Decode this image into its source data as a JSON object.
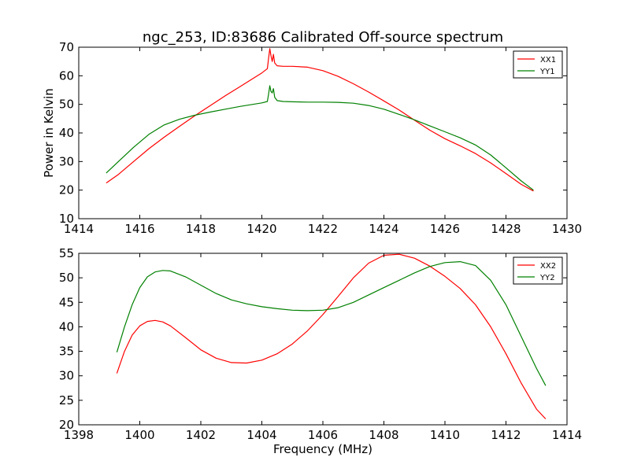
{
  "figure": {
    "title": "ngc_253, ID:83686 Calibrated Off-source spectrum"
  },
  "chart_data": [
    {
      "type": "line",
      "title": "ngc_253, ID:83686 Calibrated Off-source spectrum",
      "xlabel": "",
      "ylabel": "Power in Kelvin",
      "xlim": [
        1414,
        1430
      ],
      "ylim": [
        10,
        70
      ],
      "xticks": [
        1414,
        1416,
        1418,
        1420,
        1422,
        1424,
        1426,
        1428,
        1430
      ],
      "yticks": [
        10,
        20,
        30,
        40,
        50,
        60,
        70
      ],
      "grid": false,
      "legend_position": "top-right",
      "series": [
        {
          "name": "XX1",
          "color": "#ff0000",
          "x": [
            1414.9,
            1415.3,
            1415.8,
            1416.3,
            1416.8,
            1417.3,
            1417.8,
            1418.3,
            1418.8,
            1419.3,
            1419.7,
            1420.0,
            1420.18,
            1420.22,
            1420.26,
            1420.3,
            1420.34,
            1420.38,
            1420.42,
            1420.5,
            1420.7,
            1421.0,
            1421.5,
            1422.0,
            1422.5,
            1423.0,
            1423.5,
            1424.0,
            1424.5,
            1425.0,
            1425.5,
            1426.0,
            1426.5,
            1427.0,
            1427.5,
            1428.0,
            1428.5,
            1428.9
          ],
          "values": [
            22.5,
            25.5,
            30.0,
            34.5,
            38.5,
            42.3,
            46.0,
            49.5,
            53.0,
            56.3,
            59.0,
            61.0,
            62.5,
            66.0,
            69.5,
            67.0,
            65.0,
            67.5,
            64.5,
            63.5,
            63.3,
            63.3,
            63.0,
            61.8,
            59.8,
            57.2,
            54.3,
            51.2,
            48.0,
            44.5,
            41.0,
            38.0,
            35.5,
            32.8,
            29.5,
            25.8,
            22.0,
            19.7
          ]
        },
        {
          "name": "YY1",
          "color": "#008000",
          "x": [
            1414.9,
            1415.3,
            1415.8,
            1416.3,
            1416.8,
            1417.3,
            1417.8,
            1418.3,
            1418.8,
            1419.3,
            1419.7,
            1420.0,
            1420.18,
            1420.22,
            1420.26,
            1420.3,
            1420.34,
            1420.38,
            1420.42,
            1420.5,
            1420.7,
            1421.0,
            1421.5,
            1422.0,
            1422.5,
            1423.0,
            1423.5,
            1424.0,
            1424.5,
            1425.0,
            1425.5,
            1426.0,
            1426.5,
            1427.0,
            1427.5,
            1428.0,
            1428.5,
            1428.9
          ],
          "values": [
            26.0,
            30.0,
            35.0,
            39.5,
            42.8,
            44.8,
            46.2,
            47.3,
            48.3,
            49.3,
            50.0,
            50.5,
            51.0,
            53.5,
            56.5,
            54.5,
            54.0,
            55.5,
            52.5,
            51.3,
            51.0,
            50.9,
            50.8,
            50.8,
            50.7,
            50.4,
            49.6,
            48.3,
            46.5,
            44.6,
            42.5,
            40.4,
            38.3,
            35.8,
            32.3,
            27.8,
            23.2,
            20.0
          ]
        }
      ]
    },
    {
      "type": "line",
      "title": "",
      "xlabel": "Frequency (MHz)",
      "ylabel": "",
      "xlim": [
        1398,
        1414
      ],
      "ylim": [
        20,
        55
      ],
      "xticks": [
        1398,
        1400,
        1402,
        1404,
        1406,
        1408,
        1410,
        1412,
        1414
      ],
      "yticks": [
        20,
        25,
        30,
        35,
        40,
        45,
        50,
        55
      ],
      "grid": false,
      "legend_position": "top-right",
      "series": [
        {
          "name": "XX2",
          "color": "#ff0000",
          "x": [
            1399.25,
            1399.5,
            1399.75,
            1400.0,
            1400.25,
            1400.5,
            1400.75,
            1401.0,
            1401.5,
            1402.0,
            1402.5,
            1403.0,
            1403.5,
            1404.0,
            1404.5,
            1405.0,
            1405.5,
            1406.0,
            1406.5,
            1407.0,
            1407.5,
            1408.0,
            1408.5,
            1409.0,
            1409.5,
            1410.0,
            1410.5,
            1411.0,
            1411.5,
            1412.0,
            1412.5,
            1413.0,
            1413.3
          ],
          "values": [
            30.5,
            35.0,
            38.3,
            40.2,
            41.1,
            41.3,
            41.0,
            40.2,
            37.8,
            35.3,
            33.6,
            32.7,
            32.6,
            33.2,
            34.5,
            36.5,
            39.2,
            42.5,
            46.2,
            50.0,
            53.0,
            54.6,
            54.8,
            54.0,
            52.4,
            50.3,
            47.8,
            44.5,
            40.0,
            34.5,
            28.5,
            23.2,
            21.2
          ]
        },
        {
          "name": "YY2",
          "color": "#008000",
          "x": [
            1399.25,
            1399.5,
            1399.75,
            1400.0,
            1400.25,
            1400.5,
            1400.75,
            1401.0,
            1401.5,
            1402.0,
            1402.5,
            1403.0,
            1403.5,
            1404.0,
            1404.5,
            1405.0,
            1405.5,
            1406.0,
            1406.5,
            1407.0,
            1407.5,
            1408.0,
            1408.5,
            1409.0,
            1409.5,
            1410.0,
            1410.5,
            1411.0,
            1411.5,
            1412.0,
            1412.5,
            1413.0,
            1413.3
          ],
          "values": [
            34.8,
            40.0,
            44.5,
            48.0,
            50.2,
            51.2,
            51.5,
            51.4,
            50.2,
            48.5,
            46.8,
            45.5,
            44.7,
            44.1,
            43.7,
            43.4,
            43.3,
            43.4,
            43.9,
            45.0,
            46.5,
            48.0,
            49.5,
            51.0,
            52.3,
            53.1,
            53.3,
            52.5,
            49.5,
            44.5,
            38.0,
            31.5,
            28.0
          ]
        }
      ]
    }
  ]
}
